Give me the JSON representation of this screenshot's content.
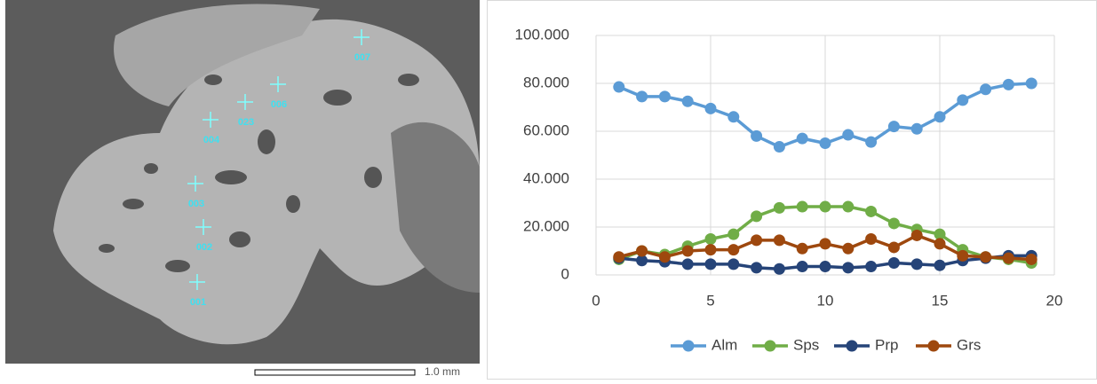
{
  "image": {
    "points": [
      "001",
      "002",
      "003",
      "004",
      "023",
      "006",
      "007"
    ],
    "scale_bar": "1.0 mm"
  },
  "chart_data": {
    "type": "line",
    "x": [
      1,
      2,
      3,
      4,
      5,
      6,
      7,
      8,
      9,
      10,
      11,
      12,
      13,
      14,
      15,
      16,
      17,
      18,
      19
    ],
    "series": [
      {
        "name": "Alm",
        "color": "#5b9bd5",
        "values": [
          78.5,
          74.5,
          74.5,
          72.5,
          69.5,
          66,
          58,
          53.5,
          57,
          55,
          58.5,
          55.5,
          62,
          61,
          66,
          73,
          77.5,
          79.5,
          80
        ]
      },
      {
        "name": "Sps",
        "color": "#70ad47",
        "values": [
          6.5,
          10,
          8.5,
          12,
          15,
          17,
          24.5,
          28,
          28.5,
          28.5,
          28.5,
          26.5,
          21.5,
          19,
          17,
          10.5,
          7.5,
          6.5,
          5
        ]
      },
      {
        "name": "Prp",
        "color": "#264478",
        "values": [
          7,
          6,
          5.5,
          4.5,
          4.5,
          4.5,
          3,
          2.5,
          3.5,
          3.5,
          3,
          3.5,
          5,
          4.5,
          4,
          6,
          7,
          8,
          8
        ]
      },
      {
        "name": "Grs",
        "color": "#9e480e",
        "values": [
          7.5,
          10,
          7.5,
          10,
          10.5,
          10.5,
          14.5,
          14.5,
          11,
          13,
          11,
          15,
          11.5,
          16.5,
          13,
          8,
          7.5,
          7,
          6.5
        ]
      }
    ],
    "xlim": [
      0,
      20
    ],
    "xticks": [
      0,
      5,
      10,
      15,
      20
    ],
    "ylim": [
      0,
      100
    ],
    "yticks": [
      0,
      {
        "value": 20,
        "label": "20.000"
      },
      {
        "value": 40,
        "label": "40.000"
      },
      {
        "value": 60,
        "label": "60.000"
      },
      {
        "value": 80,
        "label": "80.000"
      },
      {
        "value": 100,
        "label": "100.000"
      }
    ],
    "grid": true,
    "legend": "bottom"
  }
}
